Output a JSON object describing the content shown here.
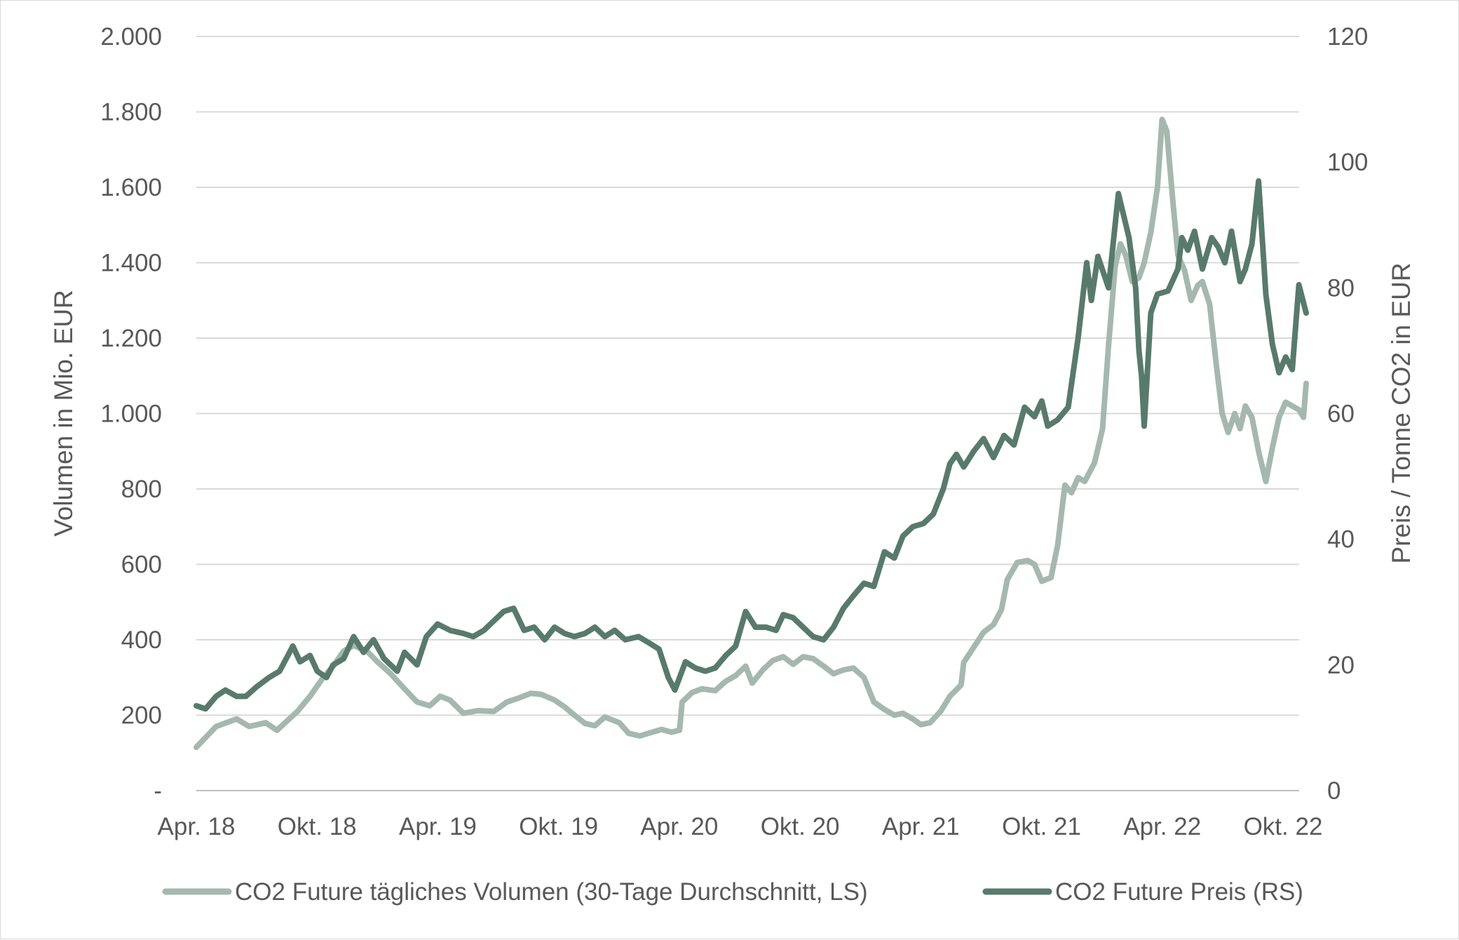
{
  "chart_data": {
    "type": "line",
    "ylabel_left": "Volumen in Mio. EUR",
    "ylabel_right": "Preis /  Tonne CO2 in EUR",
    "ylim_left": [
      0,
      2000
    ],
    "ylim_right": [
      0,
      120
    ],
    "yticks_left": [
      "2.000",
      "1.800",
      "1.600",
      "1.400",
      "1.200",
      "1.000",
      "800",
      "600",
      "400",
      "200",
      "-"
    ],
    "yticks_right": [
      "120",
      "100",
      "80",
      "60",
      "40",
      "20",
      "0"
    ],
    "xticks": [
      "Apr. 18",
      "Okt. 18",
      "Apr. 19",
      "Okt. 19",
      "Apr. 20",
      "Okt. 20",
      "Apr. 21",
      "Okt. 21",
      "Apr. 22",
      "Okt. 22"
    ],
    "grid": true,
    "legend_position": "bottom",
    "colors": {
      "volume": "#a5b8af",
      "price": "#587a6c"
    },
    "series": [
      {
        "name": "CO2 Future tägliches Volumen (30-Tage Durchschnitt, LS)",
        "axis": "left",
        "points": [
          [
            "2018-04-01",
            115
          ],
          [
            "2018-05-01",
            170
          ],
          [
            "2018-06-01",
            190
          ],
          [
            "2018-06-20",
            170
          ],
          [
            "2018-07-15",
            180
          ],
          [
            "2018-08-01",
            160
          ],
          [
            "2018-09-01",
            210
          ],
          [
            "2018-09-20",
            250
          ],
          [
            "2018-10-10",
            300
          ],
          [
            "2018-10-25",
            330
          ],
          [
            "2018-11-10",
            370
          ],
          [
            "2018-11-25",
            385
          ],
          [
            "2018-12-15",
            370
          ],
          [
            "2019-01-01",
            340
          ],
          [
            "2019-01-20",
            310
          ],
          [
            "2019-02-10",
            270
          ],
          [
            "2019-03-01",
            235
          ],
          [
            "2019-03-20",
            225
          ],
          [
            "2019-04-05",
            250
          ],
          [
            "2019-04-20",
            240
          ],
          [
            "2019-05-10",
            205
          ],
          [
            "2019-06-01",
            212
          ],
          [
            "2019-06-25",
            210
          ],
          [
            "2019-07-15",
            235
          ],
          [
            "2019-08-01",
            245
          ],
          [
            "2019-08-20",
            258
          ],
          [
            "2019-09-05",
            255
          ],
          [
            "2019-09-25",
            240
          ],
          [
            "2019-10-10",
            222
          ],
          [
            "2019-10-25",
            200
          ],
          [
            "2019-11-10",
            178
          ],
          [
            "2019-11-25",
            172
          ],
          [
            "2019-12-10",
            195
          ],
          [
            "2020-01-01",
            180
          ],
          [
            "2020-01-15",
            152
          ],
          [
            "2020-02-01",
            145
          ],
          [
            "2020-02-20",
            155
          ],
          [
            "2020-03-05",
            162
          ],
          [
            "2020-03-20",
            155
          ],
          [
            "2020-04-01",
            160
          ],
          [
            "2020-04-05",
            235
          ],
          [
            "2020-04-20",
            260
          ],
          [
            "2020-05-05",
            270
          ],
          [
            "2020-05-25",
            265
          ],
          [
            "2020-06-10",
            290
          ],
          [
            "2020-06-25",
            305
          ],
          [
            "2020-07-10",
            330
          ],
          [
            "2020-07-20",
            285
          ],
          [
            "2020-08-05",
            320
          ],
          [
            "2020-08-20",
            345
          ],
          [
            "2020-09-05",
            355
          ],
          [
            "2020-09-20",
            335
          ],
          [
            "2020-10-05",
            355
          ],
          [
            "2020-10-20",
            350
          ],
          [
            "2020-11-05",
            330
          ],
          [
            "2020-11-20",
            310
          ],
          [
            "2020-12-05",
            320
          ],
          [
            "2020-12-20",
            325
          ],
          [
            "2021-01-05",
            300
          ],
          [
            "2021-01-20",
            235
          ],
          [
            "2021-02-05",
            215
          ],
          [
            "2021-02-20",
            200
          ],
          [
            "2021-03-05",
            205
          ],
          [
            "2021-03-20",
            190
          ],
          [
            "2021-04-01",
            175
          ],
          [
            "2021-04-15",
            180
          ],
          [
            "2021-05-01",
            210
          ],
          [
            "2021-05-15",
            250
          ],
          [
            "2021-06-01",
            280
          ],
          [
            "2021-06-05",
            340
          ],
          [
            "2021-06-20",
            380
          ],
          [
            "2021-07-05",
            420
          ],
          [
            "2021-07-20",
            440
          ],
          [
            "2021-08-01",
            480
          ],
          [
            "2021-08-10",
            560
          ],
          [
            "2021-08-25",
            605
          ],
          [
            "2021-09-10",
            610
          ],
          [
            "2021-09-20",
            600
          ],
          [
            "2021-10-01",
            555
          ],
          [
            "2021-10-15",
            565
          ],
          [
            "2021-10-25",
            650
          ],
          [
            "2021-11-05",
            810
          ],
          [
            "2021-11-15",
            790
          ],
          [
            "2021-11-25",
            830
          ],
          [
            "2021-12-05",
            820
          ],
          [
            "2021-12-20",
            870
          ],
          [
            "2022-01-01",
            960
          ],
          [
            "2022-01-10",
            1180
          ],
          [
            "2022-01-20",
            1390
          ],
          [
            "2022-01-28",
            1450
          ],
          [
            "2022-02-05",
            1420
          ],
          [
            "2022-02-15",
            1350
          ],
          [
            "2022-02-25",
            1360
          ],
          [
            "2022-03-05",
            1400
          ],
          [
            "2022-03-15",
            1480
          ],
          [
            "2022-03-25",
            1600
          ],
          [
            "2022-04-01",
            1780
          ],
          [
            "2022-04-08",
            1750
          ],
          [
            "2022-04-18",
            1550
          ],
          [
            "2022-04-25",
            1420
          ],
          [
            "2022-05-05",
            1380
          ],
          [
            "2022-05-15",
            1300
          ],
          [
            "2022-05-25",
            1340
          ],
          [
            "2022-06-01",
            1350
          ],
          [
            "2022-06-12",
            1290
          ],
          [
            "2022-06-22",
            1130
          ],
          [
            "2022-07-01",
            1000
          ],
          [
            "2022-07-10",
            950
          ],
          [
            "2022-07-20",
            1000
          ],
          [
            "2022-07-28",
            960
          ],
          [
            "2022-08-05",
            1020
          ],
          [
            "2022-08-15",
            990
          ],
          [
            "2022-08-25",
            900
          ],
          [
            "2022-09-05",
            820
          ],
          [
            "2022-09-15",
            910
          ],
          [
            "2022-09-25",
            990
          ],
          [
            "2022-10-05",
            1030
          ],
          [
            "2022-10-15",
            1020
          ],
          [
            "2022-10-25",
            1010
          ],
          [
            "2022-11-01",
            990
          ],
          [
            "2022-11-05",
            1080
          ]
        ]
      },
      {
        "name": "CO2 Future Preis (RS)",
        "axis": "right",
        "points": [
          [
            "2018-04-01",
            13.5
          ],
          [
            "2018-04-15",
            13
          ],
          [
            "2018-05-01",
            15
          ],
          [
            "2018-05-15",
            16
          ],
          [
            "2018-06-01",
            15
          ],
          [
            "2018-06-15",
            15
          ],
          [
            "2018-07-01",
            16.5
          ],
          [
            "2018-07-20",
            18
          ],
          [
            "2018-08-05",
            19
          ],
          [
            "2018-08-25",
            23
          ],
          [
            "2018-09-05",
            20.5
          ],
          [
            "2018-09-20",
            21.5
          ],
          [
            "2018-10-01",
            19
          ],
          [
            "2018-10-15",
            18
          ],
          [
            "2018-10-25",
            20
          ],
          [
            "2018-11-10",
            21
          ],
          [
            "2018-11-25",
            24.5
          ],
          [
            "2018-12-10",
            22
          ],
          [
            "2018-12-25",
            24
          ],
          [
            "2019-01-10",
            21
          ],
          [
            "2019-01-30",
            19
          ],
          [
            "2019-02-10",
            22
          ],
          [
            "2019-03-01",
            20
          ],
          [
            "2019-03-15",
            24.5
          ],
          [
            "2019-04-01",
            26.5
          ],
          [
            "2019-04-20",
            25.5
          ],
          [
            "2019-05-10",
            25
          ],
          [
            "2019-05-25",
            24.5
          ],
          [
            "2019-06-10",
            25.5
          ],
          [
            "2019-06-25",
            27
          ],
          [
            "2019-07-10",
            28.5
          ],
          [
            "2019-07-25",
            29
          ],
          [
            "2019-08-10",
            25.5
          ],
          [
            "2019-08-25",
            26
          ],
          [
            "2019-09-10",
            24
          ],
          [
            "2019-09-25",
            26
          ],
          [
            "2019-10-10",
            25
          ],
          [
            "2019-10-25",
            24.5
          ],
          [
            "2019-11-10",
            25
          ],
          [
            "2019-11-25",
            26
          ],
          [
            "2019-12-10",
            24.5
          ],
          [
            "2019-12-25",
            25.5
          ],
          [
            "2020-01-10",
            24
          ],
          [
            "2020-01-30",
            24.5
          ],
          [
            "2020-02-15",
            23.5
          ],
          [
            "2020-03-01",
            22.5
          ],
          [
            "2020-03-15",
            18
          ],
          [
            "2020-03-25",
            16
          ],
          [
            "2020-04-10",
            20.5
          ],
          [
            "2020-04-25",
            19.5
          ],
          [
            "2020-05-10",
            19
          ],
          [
            "2020-05-25",
            19.5
          ],
          [
            "2020-06-10",
            21.5
          ],
          [
            "2020-06-25",
            23
          ],
          [
            "2020-07-10",
            28.5
          ],
          [
            "2020-07-25",
            26
          ],
          [
            "2020-08-10",
            26
          ],
          [
            "2020-08-25",
            25.5
          ],
          [
            "2020-09-05",
            28
          ],
          [
            "2020-09-20",
            27.5
          ],
          [
            "2020-10-05",
            26
          ],
          [
            "2020-10-20",
            24.5
          ],
          [
            "2020-11-05",
            24
          ],
          [
            "2020-11-20",
            26
          ],
          [
            "2020-12-05",
            29
          ],
          [
            "2020-12-20",
            31
          ],
          [
            "2021-01-05",
            33
          ],
          [
            "2021-01-20",
            32.5
          ],
          [
            "2021-02-05",
            38
          ],
          [
            "2021-02-20",
            37
          ],
          [
            "2021-03-05",
            40.5
          ],
          [
            "2021-03-20",
            42
          ],
          [
            "2021-04-05",
            42.5
          ],
          [
            "2021-04-20",
            44
          ],
          [
            "2021-05-05",
            48
          ],
          [
            "2021-05-15",
            52
          ],
          [
            "2021-05-25",
            53.5
          ],
          [
            "2021-06-05",
            51.5
          ],
          [
            "2021-06-20",
            54
          ],
          [
            "2021-07-05",
            56
          ],
          [
            "2021-07-20",
            53
          ],
          [
            "2021-08-05",
            56.5
          ],
          [
            "2021-08-20",
            55
          ],
          [
            "2021-09-05",
            61
          ],
          [
            "2021-09-20",
            59.5
          ],
          [
            "2021-10-01",
            62
          ],
          [
            "2021-10-10",
            58
          ],
          [
            "2021-10-25",
            59
          ],
          [
            "2021-11-10",
            61
          ],
          [
            "2021-11-25",
            72
          ],
          [
            "2021-12-08",
            84
          ],
          [
            "2021-12-15",
            78
          ],
          [
            "2021-12-25",
            85
          ],
          [
            "2022-01-10",
            80
          ],
          [
            "2022-01-25",
            95
          ],
          [
            "2022-02-10",
            88
          ],
          [
            "2022-02-20",
            80
          ],
          [
            "2022-02-25",
            70
          ],
          [
            "2022-03-01",
            66
          ],
          [
            "2022-03-05",
            58
          ],
          [
            "2022-03-15",
            76
          ],
          [
            "2022-03-25",
            79
          ],
          [
            "2022-04-10",
            79.5
          ],
          [
            "2022-04-25",
            83
          ],
          [
            "2022-05-01",
            88
          ],
          [
            "2022-05-10",
            86
          ],
          [
            "2022-05-20",
            89
          ],
          [
            "2022-06-01",
            83
          ],
          [
            "2022-06-15",
            88
          ],
          [
            "2022-06-25",
            86.5
          ],
          [
            "2022-07-05",
            84
          ],
          [
            "2022-07-15",
            89
          ],
          [
            "2022-07-28",
            81
          ],
          [
            "2022-08-05",
            83
          ],
          [
            "2022-08-15",
            87
          ],
          [
            "2022-08-25",
            97
          ],
          [
            "2022-09-05",
            79
          ],
          [
            "2022-09-15",
            71
          ],
          [
            "2022-09-25",
            66.5
          ],
          [
            "2022-10-05",
            69
          ],
          [
            "2022-10-15",
            67
          ],
          [
            "2022-10-25",
            80.5
          ],
          [
            "2022-11-05",
            76
          ]
        ]
      }
    ]
  }
}
